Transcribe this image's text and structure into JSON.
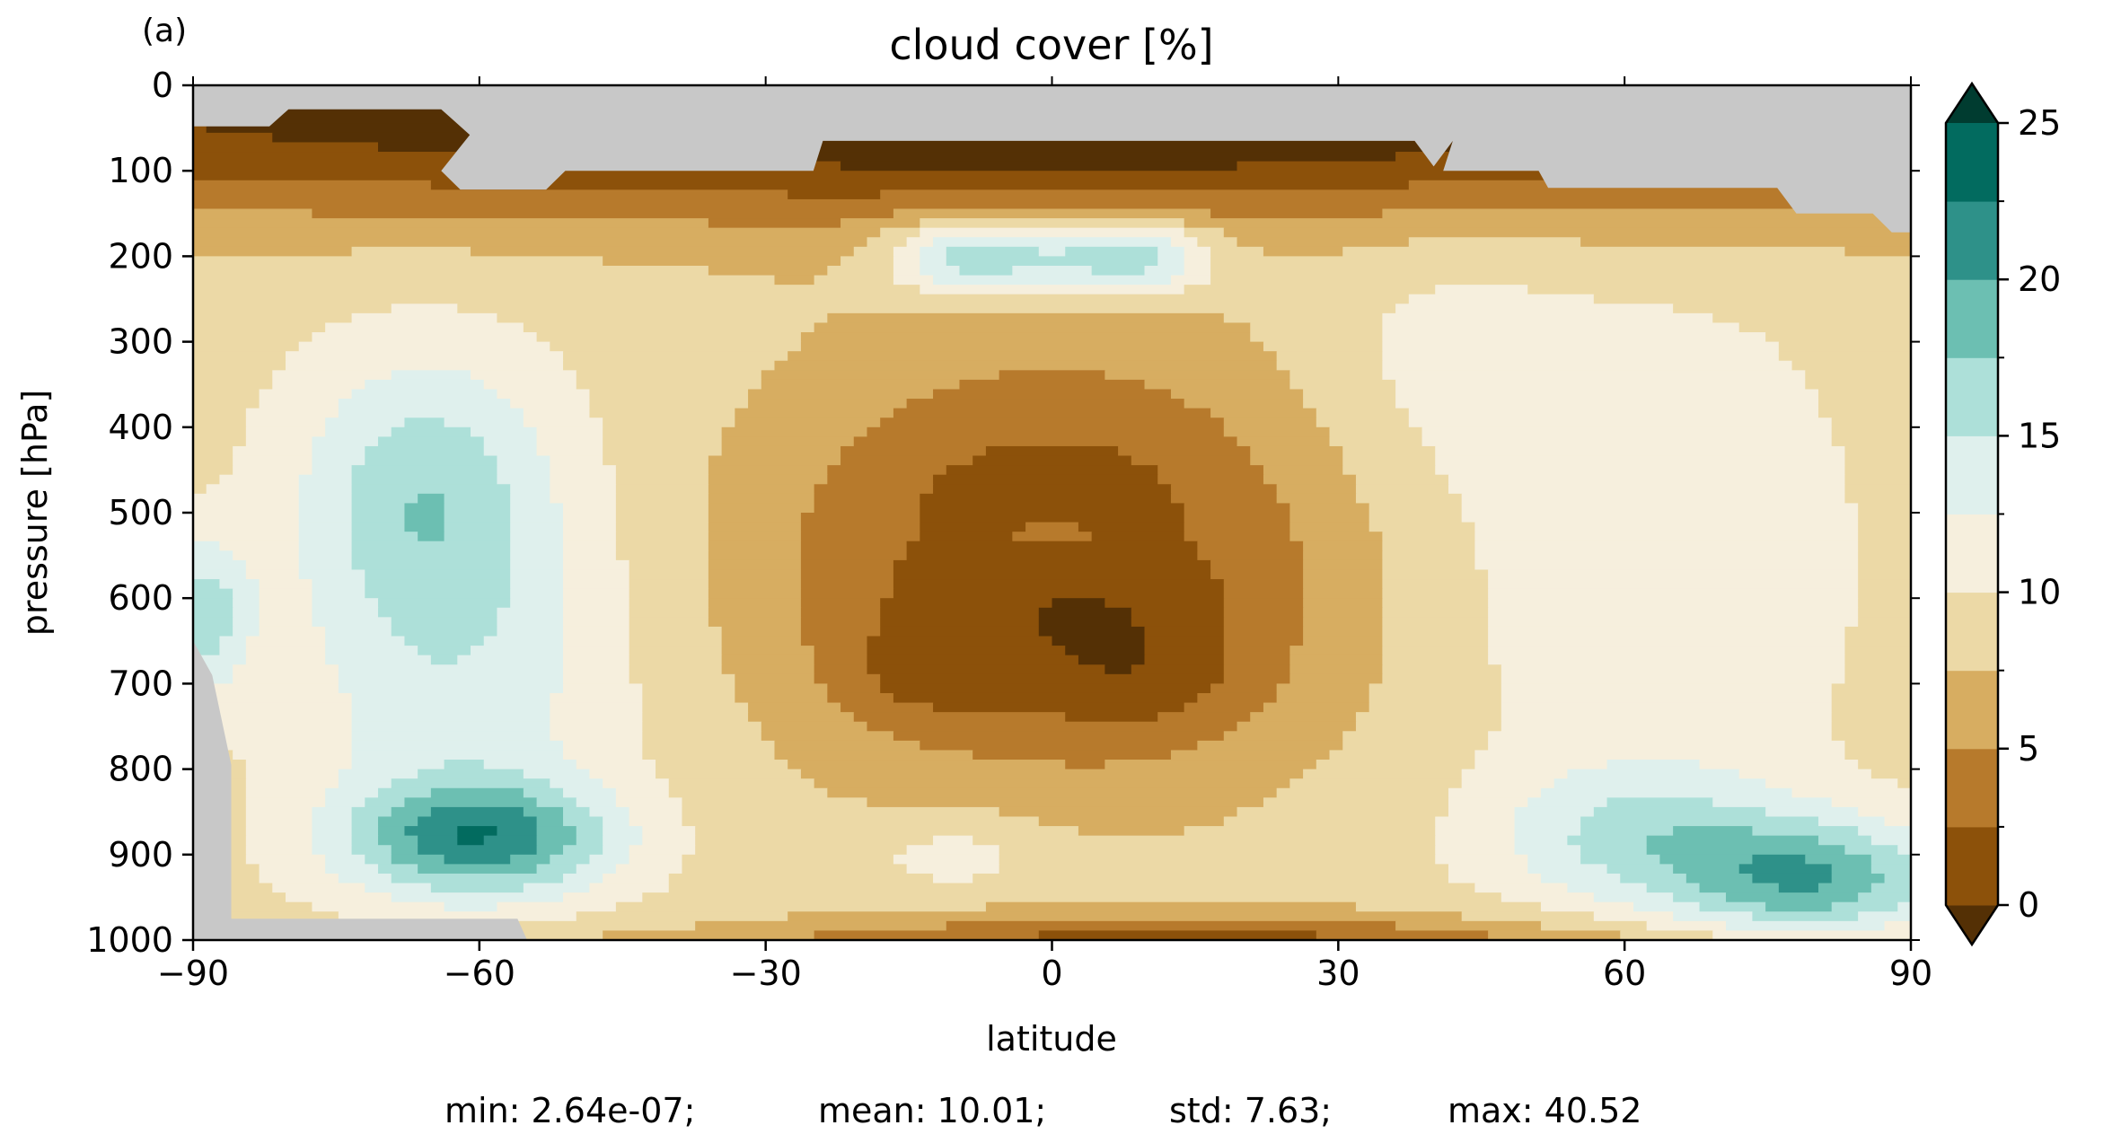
{
  "panel_label": "(a)",
  "stats_line": {
    "min": "min: 2.64e-07;",
    "mean": "mean: 10.01;",
    "std": "std: 7.63;",
    "max": "max: 40.52"
  },
  "chart_data": {
    "type": "heatmap",
    "subtype": "filled-contour",
    "title": "cloud cover [%]",
    "xlabel": "latitude",
    "ylabel": "pressure [hPa]",
    "xlim": [
      -90,
      90
    ],
    "ylim": [
      1000,
      0
    ],
    "y_inverted": true,
    "x_ticks": [
      -90,
      -60,
      -30,
      0,
      30,
      60,
      90
    ],
    "x_tick_labels": [
      "−90",
      "−60",
      "−30",
      "0",
      "30",
      "60",
      "90"
    ],
    "y_ticks": [
      0,
      100,
      200,
      300,
      400,
      500,
      600,
      700,
      800,
      900,
      1000
    ],
    "y_tick_labels": [
      "0",
      "100",
      "200",
      "300",
      "400",
      "500",
      "600",
      "700",
      "800",
      "900",
      "1000"
    ],
    "grid": false,
    "missing_color": "#c8c8c8",
    "colorbar": {
      "position": "right",
      "extend": "both",
      "levels": [
        0,
        2.5,
        5,
        7.5,
        10,
        12.5,
        15,
        17.5,
        20,
        22.5,
        25
      ],
      "tick_values": [
        0,
        5,
        10,
        15,
        20,
        25
      ],
      "tick_labels": [
        "0",
        "5",
        "10",
        "15",
        "20",
        "25"
      ],
      "under_color": "#543005",
      "over_color": "#003c30",
      "colors": [
        "#8c510a",
        "#b77a2c",
        "#d7ad61",
        "#ecd9a6",
        "#f6efdd",
        "#dff0ed",
        "#ade0d9",
        "#6cbfb2",
        "#2e9189",
        "#026b5f"
      ]
    }
  }
}
